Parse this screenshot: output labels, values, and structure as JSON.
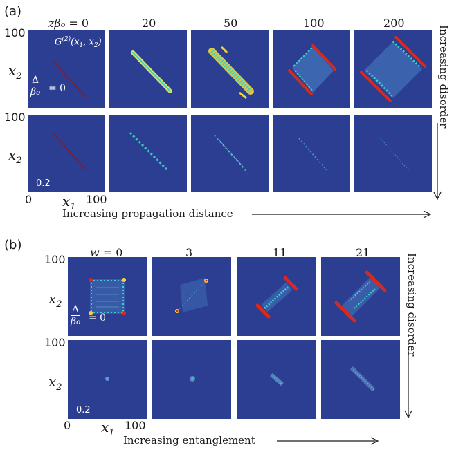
{
  "part_a": {
    "label": "(a)",
    "columns": [
      "zβ_o = 0",
      "20",
      "50",
      "100",
      "200"
    ],
    "disorder_values": [
      "= 0",
      "0.2"
    ],
    "disorder_symbol_num": "Δ",
    "disorder_symbol_den": "β_o",
    "inset_label": "G^(2)(x_1, x_2)",
    "y_axis_var": "x_2",
    "x_axis_var": "x_1",
    "y_tick_top": "100",
    "y_tick_mid": "100",
    "x_tick_left": "0",
    "x_tick_right": "100",
    "prop_arrow_text": "Increasing propagation distance",
    "disorder_arrow_text": "Increasing disorder"
  },
  "part_b": {
    "label": "(b)",
    "columns": [
      "w = 0",
      "3",
      "11",
      "21"
    ],
    "disorder_values": [
      "= 0",
      "0.2"
    ],
    "disorder_symbol_num": "Δ",
    "disorder_symbol_den": "β_o",
    "y_axis_var": "x_2",
    "x_axis_var": "x_1",
    "y_tick_top": "100",
    "y_tick_mid": "100",
    "x_tick_left": "0",
    "x_tick_right": "100",
    "ent_arrow_text": "Increasing entanglement",
    "disorder_arrow_text": "Increasing disorder"
  },
  "colors": {
    "panel_bg": "#2c3e91",
    "hot": "#d62a1f",
    "warm": "#f2d43a",
    "cool": "#3fd0c9"
  }
}
